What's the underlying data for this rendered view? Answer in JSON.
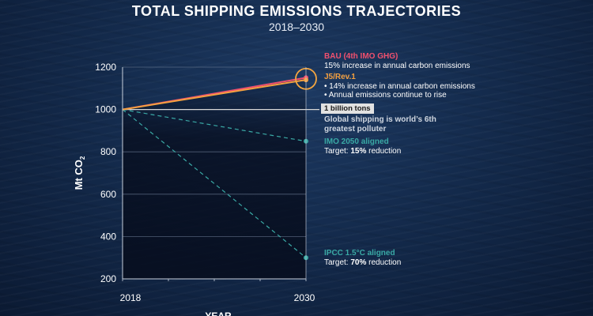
{
  "title": "TOTAL SHIPPING EMISSIONS TRAJECTORIES",
  "subtitle": "2018–2030",
  "colors": {
    "bau": "#f0506e",
    "j5": "#f4a040",
    "imo": "#3aa9a5",
    "ipcc": "#3aa9a5",
    "reference": "#d8d8d8",
    "grid": "#6e7e96",
    "highlight_circle": "#f4a640"
  },
  "chart_data": {
    "type": "line",
    "title": "TOTAL SHIPPING EMISSIONS TRAJECTORIES",
    "subtitle": "2018–2030",
    "xlabel": "YEAR",
    "ylabel": "Mt CO2",
    "ylabel_main": "Mt CO",
    "ylabel_sub": "2",
    "x_ticks": [
      "2018",
      "2030"
    ],
    "y_ticks": [
      "200",
      "400",
      "600",
      "800",
      "1000",
      "1200"
    ],
    "ylim": [
      200,
      1200
    ],
    "xlim": [
      2018,
      2030
    ],
    "grid": true,
    "series": [
      {
        "name": "BAU (4th IMO GHG)",
        "style": "solid",
        "color": "#f0506e",
        "x": [
          2018,
          2030
        ],
        "y": [
          1000,
          1150
        ]
      },
      {
        "name": "J5/Rev.1",
        "style": "solid",
        "color": "#f4a040",
        "x": [
          2018,
          2030
        ],
        "y": [
          1000,
          1140
        ]
      },
      {
        "name": "IMO 2050 aligned",
        "style": "dashed",
        "color": "#3aa9a5",
        "x": [
          2018,
          2030
        ],
        "y": [
          1000,
          850
        ]
      },
      {
        "name": "IPCC 1.5°C aligned",
        "style": "dashed",
        "color": "#3aa9a5",
        "x": [
          2018,
          2030
        ],
        "y": [
          1000,
          300
        ]
      }
    ],
    "reference_line": {
      "value": 1000,
      "label": "1 billion tons"
    }
  },
  "annotations": {
    "bau": {
      "head": "BAU (4th IMO GHG)",
      "line1": "15% increase in annual carbon emissions"
    },
    "j5": {
      "head": "J5/Rev.1",
      "line1": "• 14% increase in annual carbon emissions",
      "line2": "• Annual emissions continue to rise"
    },
    "billion": {
      "tag": "1 billion tons",
      "line1": "Global shipping is world’s 6th",
      "line2": "greatest polluter"
    },
    "imo": {
      "head": "IMO 2050 aligned",
      "pre": "Target: ",
      "pct": "15%",
      "post": " reduction"
    },
    "ipcc": {
      "head": "IPCC 1.5°C aligned",
      "pre": "Target: ",
      "pct": "70%",
      "post": " reduction"
    }
  }
}
